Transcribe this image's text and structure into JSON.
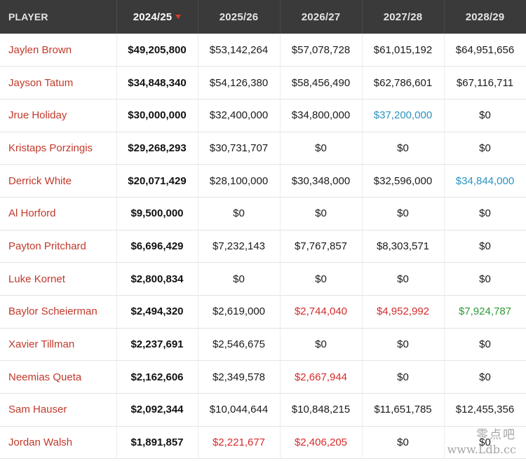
{
  "columns": {
    "player": "PLAYER",
    "years": [
      "2024/25",
      "2025/26",
      "2026/27",
      "2027/28",
      "2028/29"
    ]
  },
  "rows": [
    {
      "player": "Jaylen Brown",
      "values": [
        "$49,205,800",
        "$53,142,264",
        "$57,078,728",
        "$61,015,192",
        "$64,951,656"
      ],
      "styles": [
        "",
        "",
        "",
        "",
        ""
      ]
    },
    {
      "player": "Jayson Tatum",
      "values": [
        "$34,848,340",
        "$54,126,380",
        "$58,456,490",
        "$62,786,601",
        "$67,116,711"
      ],
      "styles": [
        "",
        "",
        "",
        "",
        ""
      ]
    },
    {
      "player": "Jrue Holiday",
      "values": [
        "$30,000,000",
        "$32,400,000",
        "$34,800,000",
        "$37,200,000",
        "$0"
      ],
      "styles": [
        "",
        "",
        "",
        "option",
        ""
      ]
    },
    {
      "player": "Kristaps Porzingis",
      "values": [
        "$29,268,293",
        "$30,731,707",
        "$0",
        "$0",
        "$0"
      ],
      "styles": [
        "",
        "",
        "",
        "",
        ""
      ]
    },
    {
      "player": "Derrick White",
      "values": [
        "$20,071,429",
        "$28,100,000",
        "$30,348,000",
        "$32,596,000",
        "$34,844,000"
      ],
      "styles": [
        "",
        "",
        "",
        "",
        "option"
      ]
    },
    {
      "player": "Al Horford",
      "values": [
        "$9,500,000",
        "$0",
        "$0",
        "$0",
        "$0"
      ],
      "styles": [
        "",
        "",
        "",
        "",
        ""
      ]
    },
    {
      "player": "Payton Pritchard",
      "values": [
        "$6,696,429",
        "$7,232,143",
        "$7,767,857",
        "$8,303,571",
        "$0"
      ],
      "styles": [
        "",
        "",
        "",
        "",
        ""
      ]
    },
    {
      "player": "Luke Kornet",
      "values": [
        "$2,800,834",
        "$0",
        "$0",
        "$0",
        "$0"
      ],
      "styles": [
        "",
        "",
        "",
        "",
        ""
      ]
    },
    {
      "player": "Baylor Scheierman",
      "values": [
        "$2,494,320",
        "$2,619,000",
        "$2,744,040",
        "$4,952,992",
        "$7,924,787"
      ],
      "styles": [
        "",
        "",
        "nonguar",
        "nonguar",
        "team"
      ]
    },
    {
      "player": "Xavier Tillman",
      "values": [
        "$2,237,691",
        "$2,546,675",
        "$0",
        "$0",
        "$0"
      ],
      "styles": [
        "",
        "",
        "",
        "",
        ""
      ]
    },
    {
      "player": "Neemias Queta",
      "values": [
        "$2,162,606",
        "$2,349,578",
        "$2,667,944",
        "$0",
        "$0"
      ],
      "styles": [
        "",
        "",
        "nonguar",
        "",
        ""
      ]
    },
    {
      "player": "Sam Hauser",
      "values": [
        "$2,092,344",
        "$10,044,644",
        "$10,848,215",
        "$11,651,785",
        "$12,455,356"
      ],
      "styles": [
        "",
        "",
        "",
        "",
        ""
      ]
    },
    {
      "player": "Jordan Walsh",
      "values": [
        "$1,891,857",
        "$2,221,677",
        "$2,406,205",
        "$0",
        "$0"
      ],
      "styles": [
        "",
        "nonguar",
        "nonguar",
        "",
        ""
      ]
    }
  ],
  "colors": {
    "header_bg": "#3a3a3a",
    "player_link": "#c0392b",
    "option": "#2a93c0",
    "nonguaranteed": "#d62b2b",
    "team_option": "#2e9a35",
    "sort_arrow": "#e03a2a"
  },
  "watermark": {
    "text_cn": "零点吧",
    "url": "www.Ldb.cc"
  }
}
